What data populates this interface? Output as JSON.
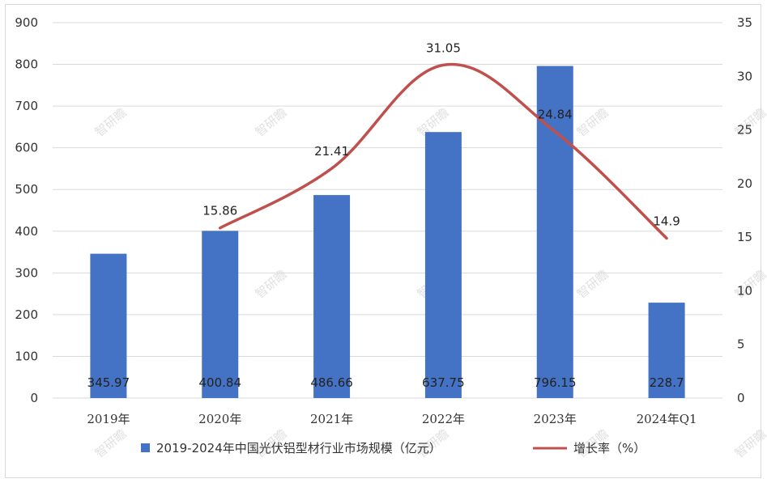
{
  "chart_data": {
    "type": "bar+line",
    "categories": [
      "2019年",
      "2020年",
      "2021年",
      "2022年",
      "2023年",
      "2024年Q1"
    ],
    "series": [
      {
        "name": "2019-2024年中国光伏铝型材行业市场规模（亿元）",
        "type": "bar",
        "axis": "left",
        "values": [
          345.97,
          400.84,
          486.66,
          637.75,
          796.15,
          228.7
        ],
        "labels": [
          "345.97",
          "400.84",
          "486.66",
          "637.75",
          "796.15",
          "228.7"
        ]
      },
      {
        "name": "增长率（%）",
        "type": "line",
        "axis": "right",
        "values": [
          null,
          15.86,
          21.41,
          31.05,
          24.84,
          14.9
        ],
        "labels": [
          "",
          "15.86",
          "21.41",
          "31.05",
          "24.84",
          "14.9"
        ]
      }
    ],
    "y_left": {
      "ylim": [
        0,
        900
      ],
      "ticks": [
        "0",
        "100",
        "200",
        "300",
        "400",
        "500",
        "600",
        "700",
        "800",
        "900"
      ]
    },
    "y_right": {
      "ylim": [
        0,
        35
      ],
      "ticks": [
        "0",
        "5",
        "10",
        "15",
        "20",
        "25",
        "30",
        "35"
      ]
    },
    "grid": true,
    "legend": "bottom",
    "colors": {
      "bar": "#4472c4",
      "line": "#c0504d",
      "grid": "#d9d9d9"
    },
    "watermark": "智研瞻"
  }
}
